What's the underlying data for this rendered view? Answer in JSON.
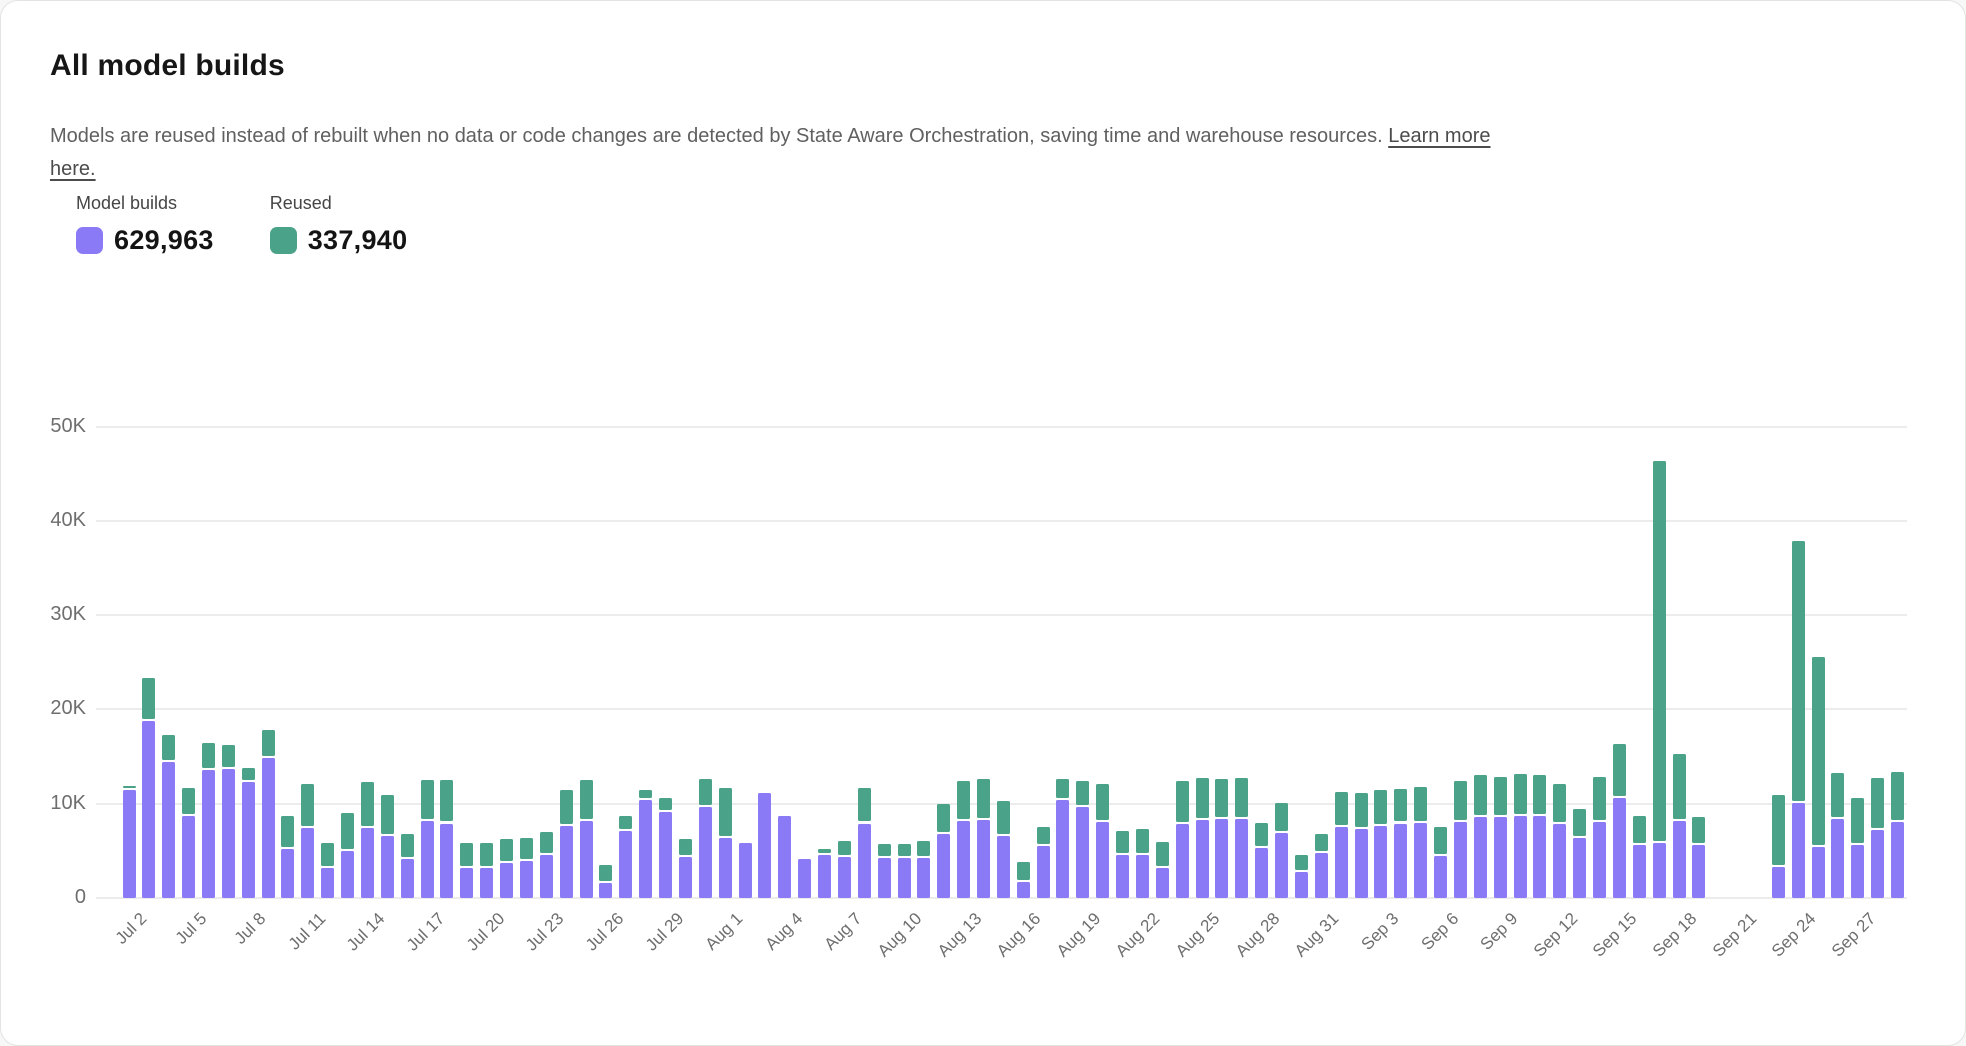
{
  "header": {
    "title": "All model builds",
    "description": "Models are reused instead of rebuilt when no data or code changes are detected by State Aware Orchestration, saving time and warehouse resources.",
    "learn_more": "Learn more here."
  },
  "legend": {
    "builds": {
      "label": "Model builds",
      "value": "629,963",
      "color": "#8B7AF5"
    },
    "reused": {
      "label": "Reused",
      "value": "337,940",
      "color": "#4AA389"
    }
  },
  "chart_data": {
    "type": "bar",
    "stacked": true,
    "title": "All model builds",
    "xlabel": "",
    "ylabel": "",
    "ylim": [
      0,
      50000
    ],
    "grid": true,
    "legend_position": "top-left",
    "series_names": [
      "Model builds",
      "Reused"
    ],
    "series_totals": {
      "Model builds": 629963,
      "Reused": 337940
    },
    "colors": {
      "builds": "#8B7AF5",
      "reused": "#4AA389"
    },
    "y_ticks": [
      {
        "value": 0,
        "label": "0"
      },
      {
        "value": 10000,
        "label": "10K"
      },
      {
        "value": 20000,
        "label": "20K"
      },
      {
        "value": 30000,
        "label": "30K"
      },
      {
        "value": 40000,
        "label": "40K"
      },
      {
        "value": 50000,
        "label": "50K"
      }
    ],
    "x_tick_every": 3,
    "days": [
      {
        "date": "Jul 2",
        "builds": 11400,
        "reused": 300
      },
      {
        "date": "Jul 3",
        "builds": 18800,
        "reused": 4300
      },
      {
        "date": "Jul 4",
        "builds": 14400,
        "reused": 2700
      },
      {
        "date": "Jul 5",
        "builds": 8700,
        "reused": 2700
      },
      {
        "date": "Jul 6",
        "builds": 13600,
        "reused": 2600
      },
      {
        "date": "Jul 7",
        "builds": 13700,
        "reused": 2300
      },
      {
        "date": "Jul 8",
        "builds": 12300,
        "reused": 1300
      },
      {
        "date": "Jul 9",
        "builds": 14800,
        "reused": 2800
      },
      {
        "date": "Jul 10",
        "builds": 5200,
        "reused": 3300
      },
      {
        "date": "Jul 11",
        "builds": 7400,
        "reused": 4500
      },
      {
        "date": "Jul 12",
        "builds": 3200,
        "reused": 2400
      },
      {
        "date": "Jul 13",
        "builds": 5000,
        "reused": 3800
      },
      {
        "date": "Jul 14",
        "builds": 7400,
        "reused": 4700
      },
      {
        "date": "Jul 15",
        "builds": 6600,
        "reused": 4100
      },
      {
        "date": "Jul 16",
        "builds": 4100,
        "reused": 2500
      },
      {
        "date": "Jul 17",
        "builds": 8200,
        "reused": 4100
      },
      {
        "date": "Jul 18",
        "builds": 7900,
        "reused": 4400
      },
      {
        "date": "Jul 19",
        "builds": 3200,
        "reused": 2400
      },
      {
        "date": "Jul 20",
        "builds": 3200,
        "reused": 2400
      },
      {
        "date": "Jul 21",
        "builds": 3700,
        "reused": 2300
      },
      {
        "date": "Jul 22",
        "builds": 3900,
        "reused": 2300
      },
      {
        "date": "Jul 23",
        "builds": 4600,
        "reused": 2200
      },
      {
        "date": "Jul 24",
        "builds": 7600,
        "reused": 3600
      },
      {
        "date": "Jul 25",
        "builds": 8200,
        "reused": 4100
      },
      {
        "date": "Jul 26",
        "builds": 1600,
        "reused": 1700
      },
      {
        "date": "Jul 27",
        "builds": 7100,
        "reused": 1400
      },
      {
        "date": "Jul 28",
        "builds": 10400,
        "reused": 800
      },
      {
        "date": "Jul 29",
        "builds": 9100,
        "reused": 1300
      },
      {
        "date": "Jul 30",
        "builds": 4300,
        "reused": 1700
      },
      {
        "date": "Jul 31",
        "builds": 9600,
        "reused": 2800
      },
      {
        "date": "Aug 1",
        "builds": 6400,
        "reused": 5000
      },
      {
        "date": "Aug 2",
        "builds": 5800,
        "reused": 0
      },
      {
        "date": "Aug 3",
        "builds": 11100,
        "reused": 0
      },
      {
        "date": "Aug 4",
        "builds": 8700,
        "reused": 0
      },
      {
        "date": "Aug 5",
        "builds": 4100,
        "reused": 0
      },
      {
        "date": "Aug 6",
        "builds": 4600,
        "reused": 400
      },
      {
        "date": "Aug 7",
        "builds": 4300,
        "reused": 1500
      },
      {
        "date": "Aug 8",
        "builds": 7900,
        "reused": 3500
      },
      {
        "date": "Aug 9",
        "builds": 4200,
        "reused": 1300
      },
      {
        "date": "Aug 10",
        "builds": 4200,
        "reused": 1300
      },
      {
        "date": "Aug 11",
        "builds": 4200,
        "reused": 1600
      },
      {
        "date": "Aug 12",
        "builds": 6800,
        "reused": 3000
      },
      {
        "date": "Aug 13",
        "builds": 8200,
        "reused": 4000
      },
      {
        "date": "Aug 14",
        "builds": 8300,
        "reused": 4100
      },
      {
        "date": "Aug 15",
        "builds": 6600,
        "reused": 3500
      },
      {
        "date": "Aug 16",
        "builds": 1700,
        "reused": 1900
      },
      {
        "date": "Aug 17",
        "builds": 5500,
        "reused": 1800
      },
      {
        "date": "Aug 18",
        "builds": 10400,
        "reused": 2000
      },
      {
        "date": "Aug 19",
        "builds": 9700,
        "reused": 2500
      },
      {
        "date": "Aug 20",
        "builds": 8100,
        "reused": 3800
      },
      {
        "date": "Aug 21",
        "builds": 4600,
        "reused": 2300
      },
      {
        "date": "Aug 22",
        "builds": 4600,
        "reused": 2500
      },
      {
        "date": "Aug 23",
        "builds": 3200,
        "reused": 2500
      },
      {
        "date": "Aug 24",
        "builds": 7800,
        "reused": 4400
      },
      {
        "date": "Aug 25",
        "builds": 8300,
        "reused": 4200
      },
      {
        "date": "Aug 26",
        "builds": 8400,
        "reused": 4000
      },
      {
        "date": "Aug 27",
        "builds": 8400,
        "reused": 4100
      },
      {
        "date": "Aug 28",
        "builds": 5300,
        "reused": 2400
      },
      {
        "date": "Aug 29",
        "builds": 6900,
        "reused": 3000
      },
      {
        "date": "Aug 30",
        "builds": 2800,
        "reused": 1500
      },
      {
        "date": "Aug 31",
        "builds": 4800,
        "reused": 1800
      },
      {
        "date": "Sep 1",
        "builds": 7500,
        "reused": 3500
      },
      {
        "date": "Sep 2",
        "builds": 7300,
        "reused": 3600
      },
      {
        "date": "Sep 3",
        "builds": 7600,
        "reused": 3600
      },
      {
        "date": "Sep 4",
        "builds": 7900,
        "reused": 3400
      },
      {
        "date": "Sep 5",
        "builds": 8000,
        "reused": 3600
      },
      {
        "date": "Sep 6",
        "builds": 4500,
        "reused": 2800
      },
      {
        "date": "Sep 7",
        "builds": 8100,
        "reused": 4100
      },
      {
        "date": "Sep 8",
        "builds": 8600,
        "reused": 4200
      },
      {
        "date": "Sep 9",
        "builds": 8600,
        "reused": 4000
      },
      {
        "date": "Sep 10",
        "builds": 8700,
        "reused": 4200
      },
      {
        "date": "Sep 11",
        "builds": 8700,
        "reused": 4100
      },
      {
        "date": "Sep 12",
        "builds": 7900,
        "reused": 4000
      },
      {
        "date": "Sep 13",
        "builds": 6400,
        "reused": 2800
      },
      {
        "date": "Sep 14",
        "builds": 8100,
        "reused": 4500
      },
      {
        "date": "Sep 15",
        "builds": 10600,
        "reused": 5500
      },
      {
        "date": "Sep 16",
        "builds": 5600,
        "reused": 2900
      },
      {
        "date": "Sep 17",
        "builds": 5800,
        "reused": 40300
      },
      {
        "date": "Sep 18",
        "builds": 8200,
        "reused": 6900
      },
      {
        "date": "Sep 19",
        "builds": 5600,
        "reused": 2800
      },
      {
        "date": "Sep 20",
        "builds": null,
        "reused": null
      },
      {
        "date": "Sep 21",
        "builds": null,
        "reused": null
      },
      {
        "date": "Sep 22",
        "builds": null,
        "reused": null
      },
      {
        "date": "Sep 23",
        "builds": 3300,
        "reused": 7400
      },
      {
        "date": "Sep 24",
        "builds": 10100,
        "reused": 27500
      },
      {
        "date": "Sep 25",
        "builds": 5400,
        "reused": 19900
      },
      {
        "date": "Sep 26",
        "builds": 8400,
        "reused": 4600
      },
      {
        "date": "Sep 27",
        "builds": 5600,
        "reused": 4800
      },
      {
        "date": "Sep 28",
        "builds": 7200,
        "reused": 5300
      },
      {
        "date": "Sep 29",
        "builds": 8100,
        "reused": 5100
      }
    ]
  }
}
